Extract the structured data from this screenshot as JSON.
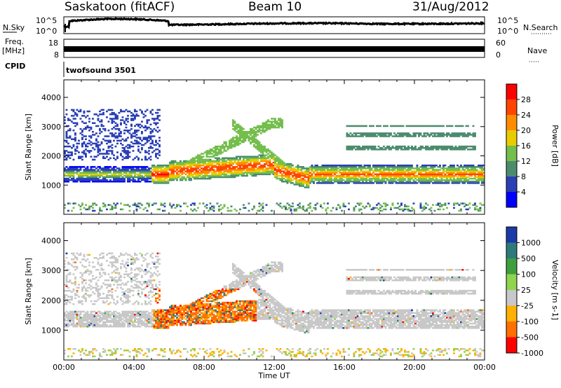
{
  "header": {
    "station": "Saskatoon (fitACF)",
    "beam": "Beam 10",
    "date": "31/Aug/2012"
  },
  "side_labels": {
    "nsky": "N.Sky",
    "freq": "Freq.",
    "freq_unit": "[MHz]",
    "cpid": "CPID",
    "nsearch": "N.Search",
    "nave": "Nave"
  },
  "cpid_text": "twofsound 3501",
  "colors": {
    "power_scale": [
      "#0000ff",
      "#2a3fb4",
      "#4c8c6e",
      "#74be4c",
      "#e8cc00",
      "#ff8c00",
      "#ff4500",
      "#ff0000"
    ],
    "velocity_scale": [
      "#1a3aa8",
      "#2e7a7a",
      "#3f9f3f",
      "#8fd34f",
      "#c8c8c8",
      "#ffb000",
      "#ff7000",
      "#ff0000"
    ]
  },
  "chart_data": [
    {
      "type": "line",
      "panel": "noise",
      "left_axis": {
        "label": "N.Sky",
        "ticks": [
          "10^5",
          "10^0"
        ]
      },
      "right_axis": {
        "label": "N.Search",
        "ticks": [
          "10^5",
          "10^0"
        ]
      },
      "x_range_hours": [
        0,
        24
      ]
    },
    {
      "type": "line",
      "panel": "frequency",
      "left_axis": {
        "label": "Freq. [MHz]",
        "ticks": [
          18,
          8
        ]
      },
      "right_axis": {
        "label": "Nave",
        "ticks": [
          60,
          0
        ]
      },
      "x_range_hours": [
        0,
        24
      ]
    },
    {
      "type": "table",
      "panel": "cpid",
      "label": "CPID",
      "entries": [
        "twofsound 3501"
      ]
    },
    {
      "type": "heatmap",
      "panel": "power",
      "ylabel": "Slant Range [km]",
      "yticks": [
        1000,
        2000,
        3000,
        4000
      ],
      "ylim": [
        0,
        4600
      ],
      "x_range_hours": [
        0,
        24
      ],
      "colorbar": {
        "label": "Power [dB]",
        "ticks": [
          4,
          8,
          12,
          16,
          20,
          24,
          28
        ],
        "range": [
          0,
          32
        ]
      }
    },
    {
      "type": "heatmap",
      "panel": "velocity",
      "ylabel": "Slant Range [km]",
      "yticks": [
        1000,
        2000,
        3000,
        4000
      ],
      "ylim": [
        0,
        4600
      ],
      "x_range_hours": [
        0,
        24
      ],
      "colorbar": {
        "label": "Velocity [m s-1]",
        "ticks": [
          1000,
          500,
          100,
          25,
          -25,
          -100,
          -500,
          -1000
        ]
      }
    },
    {
      "type": "axis",
      "xlabel": "Time UT",
      "xticks": [
        "00:00",
        "04:00",
        "08:00",
        "12:00",
        "16:00",
        "20:00",
        "00:00"
      ]
    }
  ]
}
